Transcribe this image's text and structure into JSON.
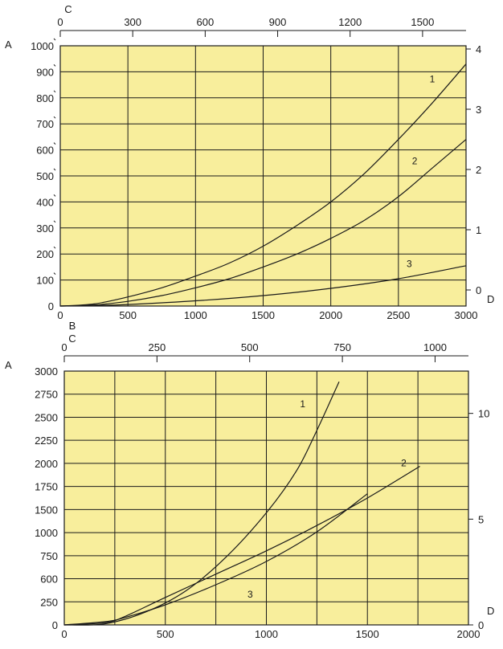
{
  "colors": {
    "plot_background": "#f8ee9c",
    "grid": "#1a1a1a",
    "curve": "#1a1a1a",
    "page_background": "#ffffff"
  },
  "chart_data": [
    {
      "type": "line",
      "letters": {
        "top_axis": "C",
        "left_axis": "A",
        "bottom_axis": "B",
        "right_axis": "D"
      },
      "x_bottom": {
        "range": [
          0,
          3000
        ],
        "ticks": [
          "0",
          "500",
          "1000",
          "1500",
          "2000",
          "2500",
          "3000"
        ],
        "tick_values": [
          0,
          500,
          1000,
          1500,
          2000,
          2500,
          3000
        ]
      },
      "x_top": {
        "range": [
          0,
          1680
        ],
        "ticks": [
          "0",
          "300",
          "600",
          "900",
          "1200",
          "1500"
        ],
        "tick_values": [
          0,
          300,
          600,
          900,
          1200,
          1500
        ]
      },
      "y_left": {
        "range": [
          0,
          1000
        ],
        "ticks": [
          "0",
          "100",
          "200",
          "300",
          "400",
          "500",
          "600",
          "700",
          "800",
          "900",
          "1000"
        ],
        "tick_values": [
          0,
          100,
          200,
          300,
          400,
          500,
          600,
          700,
          800,
          900,
          1000
        ]
      },
      "y_right": {
        "range": [
          0,
          4
        ],
        "ticks": [
          "0",
          "1",
          "2",
          "3",
          "4"
        ],
        "tick_values": [
          0,
          1,
          2,
          3,
          4
        ]
      },
      "grid": true,
      "series": [
        {
          "label": "1",
          "label_at": [
            2750,
            860
          ],
          "points": [
            [
              0,
              0
            ],
            [
              250,
              8
            ],
            [
              500,
              35
            ],
            [
              750,
              70
            ],
            [
              1000,
              115
            ],
            [
              1250,
              165
            ],
            [
              1500,
              230
            ],
            [
              1750,
              310
            ],
            [
              2000,
              400
            ],
            [
              2250,
              510
            ],
            [
              2500,
              640
            ],
            [
              2750,
              780
            ],
            [
              3000,
              930
            ]
          ]
        },
        {
          "label": "2",
          "label_at": [
            2620,
            545
          ],
          "points": [
            [
              0,
              0
            ],
            [
              250,
              4
            ],
            [
              500,
              18
            ],
            [
              750,
              40
            ],
            [
              1000,
              70
            ],
            [
              1250,
              105
            ],
            [
              1500,
              150
            ],
            [
              1750,
              200
            ],
            [
              2000,
              260
            ],
            [
              2250,
              330
            ],
            [
              2500,
              420
            ],
            [
              2750,
              530
            ],
            [
              3000,
              640
            ]
          ]
        },
        {
          "label": "3",
          "label_at": [
            2580,
            150
          ],
          "points": [
            [
              0,
              0
            ],
            [
              250,
              2
            ],
            [
              500,
              6
            ],
            [
              1000,
              20
            ],
            [
              1500,
              40
            ],
            [
              2000,
              68
            ],
            [
              2500,
              105
            ],
            [
              3000,
              155
            ]
          ]
        }
      ]
    },
    {
      "type": "line",
      "letters": {
        "top_axis": "C",
        "left_axis": "A",
        "right_axis": "D"
      },
      "x_bottom": {
        "range": [
          0,
          2000
        ],
        "ticks": [
          "0",
          "500",
          "1000",
          "1500",
          "2000"
        ],
        "tick_values": [
          0,
          500,
          1000,
          1500,
          2000
        ]
      },
      "x_top": {
        "range": [
          0,
          1090
        ],
        "ticks": [
          "0",
          "250",
          "500",
          "750",
          "1000"
        ],
        "tick_values": [
          0,
          250,
          500,
          750,
          1000
        ]
      },
      "y_left": {
        "ticks": [
          "0",
          "250",
          "600",
          "750",
          "1000",
          "1500",
          "1750",
          "2000",
          "2250",
          "2500",
          "2750",
          "3000"
        ]
      },
      "y_right": {
        "range": [
          0,
          12
        ],
        "ticks": [
          "0",
          "5",
          "10"
        ],
        "tick_values": [
          0,
          5,
          10
        ]
      },
      "grid": true,
      "series": [
        {
          "label": "1",
          "label_at": [
            1180,
            10.3
          ],
          "points": [
            [
              0,
              0
            ],
            [
              200,
              0.05
            ],
            [
              400,
              0.6
            ],
            [
              600,
              1.6
            ],
            [
              800,
              3.2
            ],
            [
              1000,
              5.3
            ],
            [
              1150,
              7.3
            ],
            [
              1250,
              9.2
            ],
            [
              1360,
              11.5
            ]
          ]
        },
        {
          "label": "2",
          "label_at": [
            1680,
            7.5
          ],
          "points": [
            [
              0,
              0
            ],
            [
              200,
              0.1
            ],
            [
              300,
              0.4
            ],
            [
              500,
              1.3
            ],
            [
              750,
              2.4
            ],
            [
              1000,
              3.5
            ],
            [
              1250,
              4.7
            ],
            [
              1500,
              6.0
            ],
            [
              1760,
              7.5
            ]
          ]
        },
        {
          "label": "3",
          "label_at": [
            920,
            1.3
          ],
          "points": [
            [
              0,
              0
            ],
            [
              200,
              0.15
            ],
            [
              300,
              0.35
            ],
            [
              500,
              0.95
            ],
            [
              750,
              1.9
            ],
            [
              1000,
              3.0
            ],
            [
              1250,
              4.4
            ],
            [
              1500,
              6.2
            ]
          ]
        }
      ]
    }
  ]
}
